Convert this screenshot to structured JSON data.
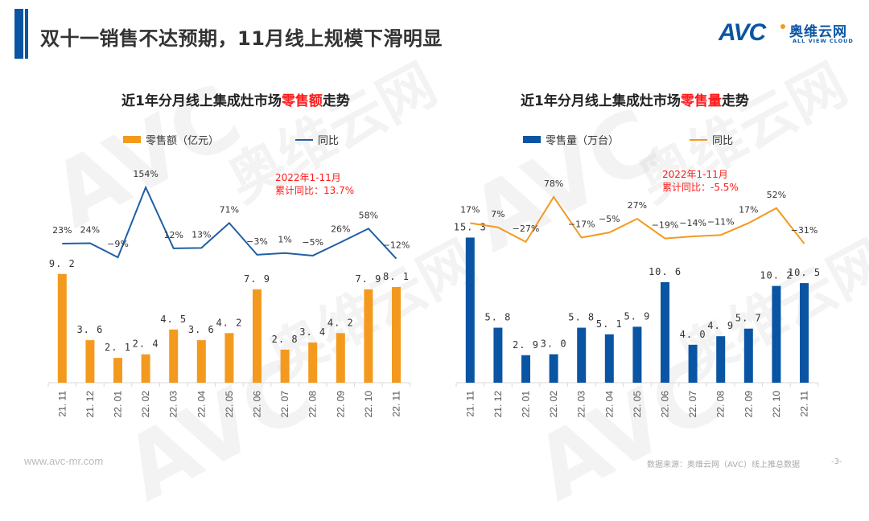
{
  "header": {
    "title": "双十一销售不达预期，11月线上规模下滑明显",
    "logo": {
      "mark": "AVC",
      "cn": "奥维云网",
      "en": "ALL VIEW CLOUD"
    }
  },
  "colors": {
    "brand_blue": "#0a55a3",
    "orange": "#f39a1e",
    "highlight_red": "#ff1a1a"
  },
  "charts": [
    {
      "title_pre": "近1年分月线上集成灶市场",
      "title_hl": "零售额",
      "title_post": "走势",
      "legend_bar": "零售额（亿元）",
      "legend_line": "同比",
      "note_line1": "2022年1-11月",
      "note_line2": "累计同比：13.7%"
    },
    {
      "title_pre": "近1年分月线上集成灶市场",
      "title_hl": "零售量",
      "title_post": "走势",
      "legend_bar": "零售量（万台）",
      "legend_line": "同比",
      "note_line1": "2022年1-11月",
      "note_line2": "累计同比：-5.5%"
    }
  ],
  "chart_data": [
    {
      "type": "bar",
      "title": "近1年分月线上集成灶市场零售额走势",
      "categories": [
        "21.11",
        "21.12",
        "22.01",
        "22.02",
        "22.03",
        "22.04",
        "22.05",
        "22.06",
        "22.07",
        "22.08",
        "22.09",
        "22.10",
        "22.11"
      ],
      "series": [
        {
          "name": "零售额（亿元）",
          "type": "bar",
          "color": "#f39a1e",
          "values": [
            9.2,
            3.6,
            2.1,
            2.4,
            4.5,
            3.6,
            4.2,
            7.9,
            2.8,
            3.4,
            4.2,
            7.9,
            8.1
          ],
          "labels": [
            "9.2",
            "3.6",
            "2.1",
            "2.4",
            "4.5",
            "3.6",
            "4.2",
            "7.9",
            "2.8",
            "3.4",
            "4.2",
            "7.9",
            "8.1"
          ]
        },
        {
          "name": "同比",
          "type": "line",
          "color": "#1f5fa6",
          "values": [
            23,
            24,
            -9,
            154,
            12,
            13,
            71,
            -3,
            1,
            -5,
            26,
            58,
            -12
          ],
          "labels": [
            "23%",
            "24%",
            "-9%",
            "154%",
            "12%",
            "13%",
            "71%",
            "-3%",
            "1%",
            "-5%",
            "26%",
            "58%",
            "-12%"
          ]
        }
      ],
      "annotation": "2022年1-11月 累计同比：13.7%",
      "xlabel": "",
      "ylabel": "",
      "legend": "top"
    },
    {
      "type": "bar",
      "title": "近1年分月线上集成灶市场零售量走势",
      "categories": [
        "21.11",
        "21.12",
        "22.01",
        "22.02",
        "22.03",
        "22.04",
        "22.05",
        "22.06",
        "22.07",
        "22.08",
        "22.09",
        "22.10",
        "22.11"
      ],
      "series": [
        {
          "name": "零售量（万台）",
          "type": "bar",
          "color": "#0a55a3",
          "values": [
            15.3,
            5.8,
            2.9,
            3.0,
            5.8,
            5.1,
            5.9,
            10.6,
            4.0,
            4.9,
            5.7,
            10.2,
            10.5
          ],
          "labels": [
            "15.3",
            "5.8",
            "2.9",
            "3.0",
            "5.8",
            "5.1",
            "5.9",
            "10.6",
            "4.0",
            "4.9",
            "5.7",
            "10.2",
            "10.5"
          ]
        },
        {
          "name": "同比",
          "type": "line",
          "color": "#f39a1e",
          "values": [
            17,
            7,
            -27,
            78,
            -17,
            -5,
            27,
            -19,
            -14,
            -11,
            17,
            52,
            -31
          ],
          "labels": [
            "17%",
            "7%",
            "-27%",
            "78%",
            "-17%",
            "-5%",
            "27%",
            "-19%",
            "-14%",
            "-11%",
            "17%",
            "52%",
            "-31%"
          ]
        }
      ],
      "annotation": "2022年1-11月 累计同比：-5.5%",
      "xlabel": "",
      "ylabel": "",
      "legend": "top"
    }
  ],
  "footer": {
    "url": "www.avc-mr.com",
    "source": "数据来源：奥维云网（AVC）线上推总数据",
    "page": "-3-"
  }
}
